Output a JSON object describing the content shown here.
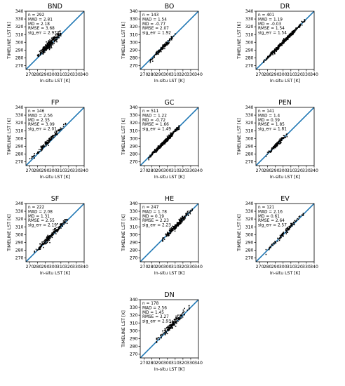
{
  "chart_data": [
    {
      "type": "scatter",
      "title": "BND",
      "xlabel": "In-situ LST [K]",
      "ylabel": "TIMELINE LST [K]",
      "xlim": [
        265,
        340
      ],
      "ylim": [
        265,
        340
      ],
      "x_ticks": [
        "270",
        "280",
        "290",
        "300",
        "310",
        "320",
        "330",
        "340"
      ],
      "y_ticks": [
        "270",
        "280",
        "290",
        "300",
        "310",
        "320",
        "330",
        "340"
      ],
      "stats": [
        "n = 292",
        "MAD = 2.81",
        "MD = 2.18",
        "RMSE = 3.68",
        "sig_err = 2.97"
      ],
      "reference_line": [
        [
          265,
          265
        ],
        [
          340,
          340
        ]
      ],
      "points_summary": {
        "n": 292,
        "x_range": [
          280,
          310
        ],
        "mean_offset": 2.18,
        "spread": 2.97
      }
    },
    {
      "type": "scatter",
      "title": "BO",
      "xlabel": "In-situ LST [K]",
      "ylabel": "TIMELINE LST [K]",
      "xlim": [
        265,
        340
      ],
      "ylim": [
        265,
        340
      ],
      "x_ticks": [
        "270",
        "280",
        "290",
        "300",
        "310",
        "320",
        "330",
        "340"
      ],
      "y_ticks": [
        "270",
        "280",
        "290",
        "300",
        "310",
        "320",
        "330",
        "340"
      ],
      "stats": [
        "n = 143",
        "MAD = 1.54",
        "MD = -0.77",
        "RMSE = 2.07",
        "sig_err = 1.92"
      ],
      "reference_line": [
        [
          265,
          265
        ],
        [
          340,
          340
        ]
      ],
      "points_summary": {
        "n": 143,
        "x_range": [
          278,
          310
        ],
        "mean_offset": -0.77,
        "spread": 1.92
      }
    },
    {
      "type": "scatter",
      "title": "DR",
      "xlabel": "In-situ LST [K]",
      "ylabel": "TIMELINE LST [K]",
      "xlim": [
        265,
        340
      ],
      "ylim": [
        265,
        340
      ],
      "x_ticks": [
        "270",
        "280",
        "290",
        "300",
        "310",
        "320",
        "330",
        "340"
      ],
      "y_ticks": [
        "270",
        "280",
        "290",
        "300",
        "310",
        "320",
        "330",
        "340"
      ],
      "stats": [
        "n = 401",
        "MAD = 1.19",
        "MD = -0.03",
        "RMSE = 1.54",
        "sig_err = 1.54"
      ],
      "reference_line": [
        [
          265,
          265
        ],
        [
          340,
          340
        ]
      ],
      "points_summary": {
        "n": 401,
        "x_range": [
          275,
          328
        ],
        "mean_offset": -0.03,
        "spread": 1.54
      }
    },
    {
      "type": "scatter",
      "title": "FP",
      "xlabel": "In-situ LST [K]",
      "ylabel": "TIMELINE LST [K]",
      "xlim": [
        265,
        340
      ],
      "ylim": [
        265,
        340
      ],
      "x_ticks": [
        "270",
        "280",
        "290",
        "300",
        "310",
        "320",
        "330",
        "340"
      ],
      "y_ticks": [
        "270",
        "280",
        "290",
        "300",
        "310",
        "320",
        "330",
        "340"
      ],
      "stats": [
        "n = 146",
        "MAD = 2.56",
        "MD = 2.35",
        "RMSE = 3.09",
        "sig_err = 2.01"
      ],
      "reference_line": [
        [
          265,
          265
        ],
        [
          340,
          340
        ]
      ],
      "points_summary": {
        "n": 146,
        "x_range": [
          270,
          316
        ],
        "mean_offset": 2.35,
        "spread": 2.01
      }
    },
    {
      "type": "scatter",
      "title": "GC",
      "xlabel": "In-situ LST [K]",
      "ylabel": "TIMELINE LST [K]",
      "xlim": [
        265,
        340
      ],
      "ylim": [
        265,
        340
      ],
      "x_ticks": [
        "270",
        "280",
        "290",
        "300",
        "310",
        "320",
        "330",
        "340"
      ],
      "y_ticks": [
        "270",
        "280",
        "290",
        "300",
        "310",
        "320",
        "330",
        "340"
      ],
      "stats": [
        "n = 511",
        "MAD = 1.22",
        "MD = -0.72",
        "RMSE = 1.66",
        "sig_err = 1.49"
      ],
      "reference_line": [
        [
          265,
          265
        ],
        [
          340,
          340
        ]
      ],
      "points_summary": {
        "n": 511,
        "x_range": [
          276,
          315
        ],
        "mean_offset": -0.72,
        "spread": 1.49
      }
    },
    {
      "type": "scatter",
      "title": "PEN",
      "xlabel": "In-situ LST [K]",
      "ylabel": "TIMELINE LST [K]",
      "xlim": [
        265,
        340
      ],
      "ylim": [
        265,
        340
      ],
      "x_ticks": [
        "270",
        "280",
        "290",
        "300",
        "310",
        "320",
        "330",
        "340"
      ],
      "y_ticks": [
        "270",
        "280",
        "290",
        "300",
        "310",
        "320",
        "330",
        "340"
      ],
      "stats": [
        "n = 141",
        "MAD = 1.4",
        "MD = 0.39",
        "RMSE = 1.85",
        "sig_err = 1.81"
      ],
      "reference_line": [
        [
          265,
          265
        ],
        [
          340,
          340
        ]
      ],
      "points_summary": {
        "n": 141,
        "x_range": [
          278,
          305
        ],
        "mean_offset": 0.39,
        "spread": 1.81
      }
    },
    {
      "type": "scatter",
      "title": "SF",
      "xlabel": "In-situ LST [K]",
      "ylabel": "TIMELINE LST [K]",
      "xlim": [
        265,
        340
      ],
      "ylim": [
        265,
        340
      ],
      "x_ticks": [
        "270",
        "280",
        "290",
        "300",
        "310",
        "320",
        "330",
        "340"
      ],
      "y_ticks": [
        "270",
        "280",
        "290",
        "300",
        "310",
        "320",
        "330",
        "340"
      ],
      "stats": [
        "n = 222",
        "MAD = 2.08",
        "MD = 1.31",
        "RMSE = 2.55",
        "sig_err = 2.19"
      ],
      "reference_line": [
        [
          265,
          265
        ],
        [
          340,
          340
        ]
      ],
      "points_summary": {
        "n": 222,
        "x_range": [
          276,
          318
        ],
        "mean_offset": 1.31,
        "spread": 2.19
      }
    },
    {
      "type": "scatter",
      "title": "HE",
      "xlabel": "In-situ LST [K]",
      "ylabel": "TIMELINE LST [K]",
      "xlim": [
        265,
        340
      ],
      "ylim": [
        265,
        340
      ],
      "x_ticks": [
        "270",
        "280",
        "290",
        "300",
        "310",
        "320",
        "330",
        "340"
      ],
      "y_ticks": [
        "270",
        "280",
        "290",
        "300",
        "310",
        "320",
        "330",
        "340"
      ],
      "stats": [
        "n = 247",
        "MAD = 1.78",
        "MD = 0.19",
        "RMSE = 2.23",
        "sig_err = 2.23"
      ],
      "reference_line": [
        [
          265,
          265
        ],
        [
          340,
          340
        ]
      ],
      "points_summary": {
        "n": 247,
        "x_range": [
          294,
          332
        ],
        "mean_offset": 0.19,
        "spread": 2.23
      }
    },
    {
      "type": "scatter",
      "title": "EV",
      "xlabel": "In-situ LST [K]",
      "ylabel": "TIMELINE LST [K]",
      "xlim": [
        265,
        340
      ],
      "ylim": [
        265,
        340
      ],
      "x_ticks": [
        "270",
        "280",
        "290",
        "300",
        "310",
        "320",
        "330",
        "340"
      ],
      "y_ticks": [
        "270",
        "280",
        "290",
        "300",
        "310",
        "320",
        "330",
        "340"
      ],
      "stats": [
        "n = 121",
        "MAD = 2.16",
        "MD = 0.61",
        "RMSE = 2.64",
        "sig_err = 2.57"
      ],
      "reference_line": [
        [
          265,
          265
        ],
        [
          340,
          340
        ]
      ],
      "points_summary": {
        "n": 121,
        "x_range": [
          278,
          326
        ],
        "mean_offset": 0.61,
        "spread": 2.57
      }
    },
    {
      "type": "scatter",
      "title": "DN",
      "xlabel": "In-situ LST [K]",
      "ylabel": "TIMELINE LST [K]",
      "xlim": [
        265,
        340
      ],
      "ylim": [
        265,
        340
      ],
      "x_ticks": [
        "270",
        "280",
        "290",
        "300",
        "310",
        "320",
        "330",
        "340"
      ],
      "y_ticks": [
        "270",
        "280",
        "290",
        "300",
        "310",
        "320",
        "330",
        "340"
      ],
      "stats": [
        "n = 178",
        "MAD = 2.56",
        "MD = 1.45",
        "RMSE = 3.27",
        "sig_err = 2.93"
      ],
      "reference_line": [
        [
          265,
          265
        ],
        [
          340,
          340
        ]
      ],
      "points_summary": {
        "n": 178,
        "x_range": [
          286,
          328
        ],
        "mean_offset": 1.45,
        "spread": 2.93
      }
    }
  ],
  "colors": {
    "line": "#1f77b4",
    "points": "#000000",
    "axes": "#000000"
  }
}
